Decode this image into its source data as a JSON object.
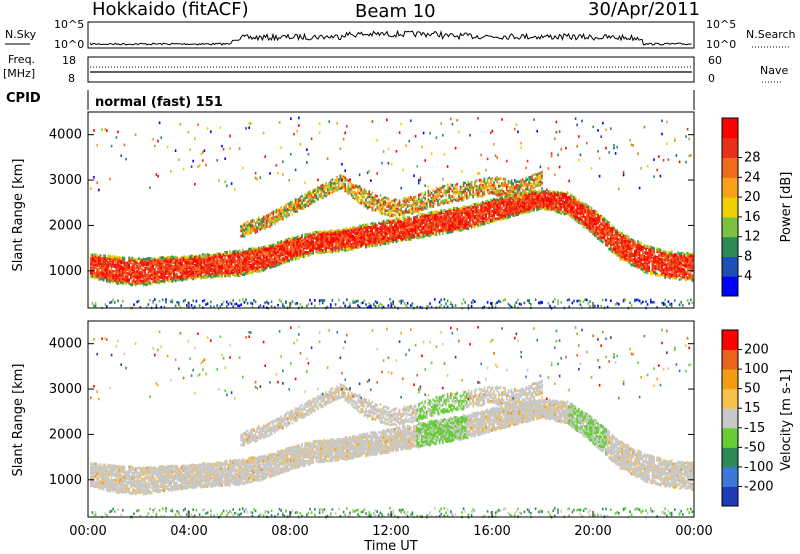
{
  "header": {
    "station": "Hokkaido (fitACF)",
    "beam": "Beam 10",
    "date": "30/Apr/2011"
  },
  "noise_panel": {
    "left_label": "N.Sky",
    "right_label": "N.Search",
    "ticks": [
      "10^5",
      "10^0"
    ]
  },
  "freq_panel": {
    "left_label_top": "Freq.",
    "left_label_bottom": "[MHz]",
    "left_ticks": [
      "18",
      "8"
    ],
    "right_label": "Nave",
    "right_ticks": [
      "60",
      "0"
    ]
  },
  "cpid": {
    "label": "CPID",
    "value": "normal (fast) 151"
  },
  "colors": {
    "power_scale": [
      "#0000ff",
      "#1e4fb4",
      "#2e8b57",
      "#7cc242",
      "#f0d000",
      "#f9a11b",
      "#f26b1d",
      "#e8311a",
      "#ff0000"
    ],
    "velocity_scale": [
      "#1e3cb4",
      "#3c78d8",
      "#2e8b57",
      "#66cc33",
      "#c8c8c8",
      "#f6c04a",
      "#f39c12",
      "#e8641a",
      "#ff0000"
    ]
  },
  "chart_data": [
    {
      "type": "heatmap",
      "title": "",
      "xlabel": "",
      "ylabel": "Slant Range [km]",
      "x_ticks": [
        "00:00",
        "04:00",
        "08:00",
        "12:00",
        "16:00",
        "20:00",
        "00:00"
      ],
      "y_ticks": [
        "1000",
        "2000",
        "3000",
        "4000"
      ],
      "ylim": [
        180,
        4500
      ],
      "colorbar": {
        "label": "Power [dB]",
        "ticks": [
          "4",
          "8",
          "12",
          "16",
          "20",
          "24",
          "28"
        ]
      },
      "bands": [
        {
          "name": "dense scatter",
          "x": [
            0,
            1,
            2,
            3,
            4,
            5,
            6,
            7,
            8,
            9,
            10,
            11,
            12,
            13,
            14,
            15,
            16,
            17,
            18,
            19,
            20,
            21,
            22,
            23,
            24
          ],
          "center_km": [
            1150,
            1050,
            1000,
            1050,
            1100,
            1150,
            1200,
            1300,
            1500,
            1650,
            1700,
            1800,
            1900,
            2000,
            2100,
            2200,
            2350,
            2500,
            2600,
            2500,
            2100,
            1600,
            1300,
            1150,
            1100
          ],
          "half_width_km": [
            250,
            300,
            300,
            280,
            260,
            260,
            280,
            260,
            250,
            240,
            240,
            250,
            260,
            260,
            260,
            260,
            250,
            240,
            200,
            250,
            280,
            300,
            300,
            300,
            300
          ]
        },
        {
          "name": "upper echo",
          "x": [
            6,
            7,
            8,
            9,
            10,
            11,
            12,
            13,
            14,
            15,
            16,
            17,
            18
          ],
          "center_km": [
            1900,
            2100,
            2400,
            2700,
            3000,
            2600,
            2400,
            2500,
            2700,
            2800,
            2900,
            2800,
            3100
          ],
          "half_width_km": [
            150,
            150,
            150,
            150,
            150,
            200,
            200,
            200,
            200,
            200,
            200,
            200,
            150
          ]
        }
      ]
    },
    {
      "type": "heatmap",
      "title": "",
      "xlabel": "Time UT",
      "ylabel": "Slant Range [km]",
      "x_ticks": [
        "00:00",
        "04:00",
        "08:00",
        "12:00",
        "16:00",
        "20:00",
        "00:00"
      ],
      "y_ticks": [
        "1000",
        "2000",
        "3000",
        "4000"
      ],
      "ylim": [
        180,
        4500
      ],
      "colorbar": {
        "label": "Velocity [m s-1]",
        "ticks": [
          "200",
          "100",
          "50",
          "15",
          "-15",
          "-50",
          "-100",
          "-200"
        ]
      }
    }
  ]
}
